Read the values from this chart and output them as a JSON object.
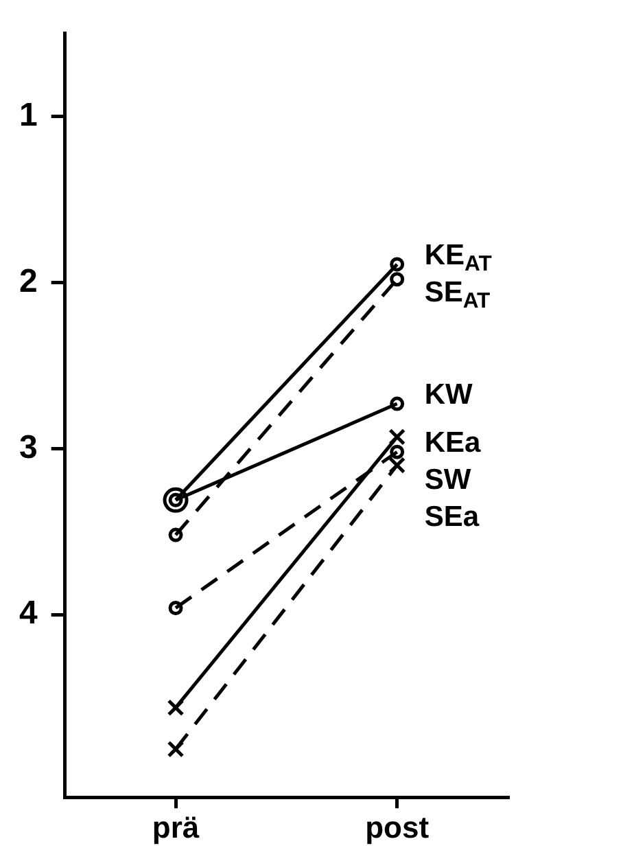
{
  "chart_data": {
    "type": "line",
    "categories": [
      "prä",
      "post"
    ],
    "series": [
      {
        "name": "KE$_{AT}$",
        "color": "#000000",
        "values": [
          3.31,
          1.89
        ],
        "line_style": "solid",
        "marker": "circle"
      },
      {
        "name": "SE$_{AT}$",
        "color": "#000000",
        "values": [
          3.52,
          1.98
        ],
        "line_style": "dashed",
        "marker": "circle"
      },
      {
        "name": "KW",
        "color": "#000000",
        "values": [
          3.31,
          2.73
        ],
        "line_style": "solid",
        "marker": "circle"
      },
      {
        "name": "KEa",
        "color": "#000000",
        "values": [
          3.96,
          3.02
        ],
        "line_style": "dashed",
        "marker": "circle"
      },
      {
        "name": "SW",
        "color": "#000000",
        "values": [
          4.56,
          2.93
        ],
        "line_style": "solid",
        "marker": "cross"
      },
      {
        "name": "SEa",
        "color": "#000000",
        "values": [
          4.81,
          3.1
        ],
        "line_style": "dashed",
        "marker": "cross"
      }
    ],
    "ylim": [
      5.1,
      0.5
    ],
    "yticks": [
      1,
      2,
      3,
      4
    ],
    "grid": false,
    "legend": false
  }
}
